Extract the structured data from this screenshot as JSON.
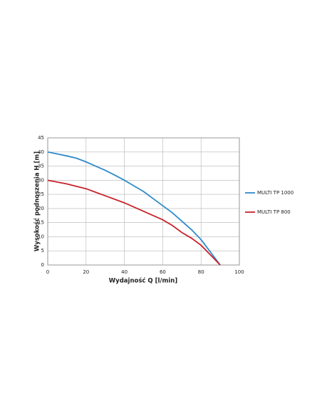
{
  "chart_data": {
    "type": "line",
    "xlabel": "Wydajność Q [l/min]",
    "ylabel": "Wysokość podnoszenia H [m]",
    "xlim": [
      0,
      100
    ],
    "xticks": [
      0,
      20,
      40,
      60,
      80,
      100
    ],
    "ylim": [
      0,
      45
    ],
    "yticks": [
      0,
      5,
      10,
      15,
      20,
      25,
      30,
      35,
      40,
      45
    ],
    "grid": true,
    "legend": "right",
    "series": [
      {
        "name": "MULTI TP 1000",
        "color": "#2e8bc9",
        "x": [
          0,
          5,
          10,
          15,
          20,
          25,
          30,
          35,
          40,
          45,
          50,
          55,
          60,
          65,
          70,
          75,
          80,
          85,
          90
        ],
        "values": [
          40,
          39.3,
          38.6,
          37.8,
          36.5,
          35,
          33.5,
          31.8,
          30,
          28,
          26,
          23.5,
          21,
          18.5,
          15.5,
          12.5,
          9,
          4.5,
          0
        ]
      },
      {
        "name": "MULTI TP 800",
        "color": "#c8242b",
        "x": [
          0,
          10,
          20,
          30,
          40,
          50,
          60,
          65,
          70,
          75,
          80,
          85,
          90
        ],
        "values": [
          30,
          28.7,
          27,
          24.5,
          22,
          19,
          16,
          14,
          11.5,
          9.5,
          7,
          3.5,
          0
        ]
      }
    ]
  }
}
